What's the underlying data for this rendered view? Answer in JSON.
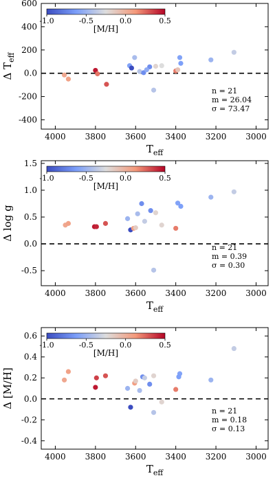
{
  "colorbar": {
    "vmin": -1.0,
    "vmax": 0.5,
    "ticks": [
      "-1.0",
      "-0.5",
      "0.0",
      "0.5"
    ],
    "label": "[M/H]",
    "colormap": "coolwarm"
  },
  "chart_data": [
    {
      "type": "scatter",
      "ylabel": "Δ T_eff",
      "xlabel": "T_eff",
      "xlim": [
        4070,
        2940
      ],
      "ylim": [
        -480,
        600
      ],
      "xticks": [
        4000,
        3800,
        3600,
        3400,
        3200,
        3000
      ],
      "yticks": [
        -400,
        -200,
        0,
        200,
        400,
        600
      ],
      "reference_line": 0,
      "stats": [
        "n = 21",
        "m = 26.04",
        "σ = 73.47"
      ],
      "points": [
        {
          "x": 3955,
          "y": -15,
          "mh": 0.05
        },
        {
          "x": 3935,
          "y": -50,
          "mh": 0.08
        },
        {
          "x": 3800,
          "y": 25,
          "mh": 0.45
        },
        {
          "x": 3790,
          "y": -5,
          "mh": 0.22
        },
        {
          "x": 3745,
          "y": -95,
          "mh": 0.3
        },
        {
          "x": 3630,
          "y": 65,
          "mh": -0.6
        },
        {
          "x": 3620,
          "y": 45,
          "mh": -1.0
        },
        {
          "x": 3605,
          "y": 135,
          "mh": -0.45
        },
        {
          "x": 3580,
          "y": 15,
          "mh": -0.4
        },
        {
          "x": 3560,
          "y": 5,
          "mh": -0.7
        },
        {
          "x": 3530,
          "y": 55,
          "mh": -0.7
        },
        {
          "x": 3510,
          "y": -145,
          "mh": -0.4
        },
        {
          "x": 3470,
          "y": 65,
          "mh": -0.25
        },
        {
          "x": 3400,
          "y": 20,
          "mh": 0.2
        },
        {
          "x": 3390,
          "y": 30,
          "mh": -0.1
        },
        {
          "x": 3380,
          "y": 135,
          "mh": -0.6
        },
        {
          "x": 3375,
          "y": 85,
          "mh": -0.62
        },
        {
          "x": 3225,
          "y": 115,
          "mh": -0.5
        },
        {
          "x": 3110,
          "y": 180,
          "mh": -0.35
        },
        {
          "x": 3500,
          "y": 60,
          "mh": -0.2
        },
        {
          "x": 3545,
          "y": 30,
          "mh": -0.55
        }
      ]
    },
    {
      "type": "scatter",
      "ylabel": "Δ log g",
      "xlabel": "T_eff",
      "xlim": [
        4070,
        2940
      ],
      "ylim": [
        -0.78,
        1.55
      ],
      "xticks": [
        4000,
        3800,
        3600,
        3400,
        3200,
        3000
      ],
      "yticks": [
        -0.5,
        0.0,
        0.5,
        1.0,
        1.5
      ],
      "reference_line": 0,
      "stats": [
        "n = 21",
        "m = 0.39",
        "σ = 0.30"
      ],
      "points": [
        {
          "x": 3950,
          "y": 0.35,
          "mh": 0.05
        },
        {
          "x": 3935,
          "y": 0.38,
          "mh": 0.08
        },
        {
          "x": 3805,
          "y": 0.32,
          "mh": 0.45
        },
        {
          "x": 3795,
          "y": 0.32,
          "mh": 0.42
        },
        {
          "x": 3750,
          "y": 0.38,
          "mh": 0.3
        },
        {
          "x": 3640,
          "y": 0.47,
          "mh": -0.5
        },
        {
          "x": 3625,
          "y": 0.26,
          "mh": -1.0
        },
        {
          "x": 3610,
          "y": 0.29,
          "mh": 0.1
        },
        {
          "x": 3590,
          "y": 0.56,
          "mh": -0.45
        },
        {
          "x": 3570,
          "y": 0.75,
          "mh": -0.7
        },
        {
          "x": 3555,
          "y": 0.42,
          "mh": -0.35
        },
        {
          "x": 3525,
          "y": 0.62,
          "mh": -0.7
        },
        {
          "x": 3510,
          "y": -0.49,
          "mh": -0.4
        },
        {
          "x": 3470,
          "y": 0.35,
          "mh": -0.2
        },
        {
          "x": 3400,
          "y": 0.29,
          "mh": 0.2
        },
        {
          "x": 3390,
          "y": 0.76,
          "mh": -0.6
        },
        {
          "x": 3375,
          "y": 0.7,
          "mh": -0.62
        },
        {
          "x": 3225,
          "y": 0.87,
          "mh": -0.5
        },
        {
          "x": 3110,
          "y": 0.97,
          "mh": -0.35
        },
        {
          "x": 3500,
          "y": 0.58,
          "mh": -0.2
        },
        {
          "x": 3600,
          "y": 0.3,
          "mh": -0.15
        }
      ]
    },
    {
      "type": "scatter",
      "ylabel": "Δ [M/H]",
      "xlabel": "T_eff",
      "xlim": [
        4070,
        2940
      ],
      "ylim": [
        -0.48,
        0.68
      ],
      "xticks": [
        4000,
        3800,
        3600,
        3400,
        3200,
        3000
      ],
      "yticks": [
        -0.4,
        -0.2,
        0.0,
        0.2,
        0.4,
        0.6
      ],
      "reference_line": 0,
      "stats": [
        "n = 21",
        "m = 0.18",
        "σ = 0.13"
      ],
      "points": [
        {
          "x": 3955,
          "y": 0.18,
          "mh": 0.05
        },
        {
          "x": 3935,
          "y": 0.26,
          "mh": 0.08
        },
        {
          "x": 3800,
          "y": 0.11,
          "mh": 0.45
        },
        {
          "x": 3795,
          "y": 0.2,
          "mh": 0.35
        },
        {
          "x": 3750,
          "y": 0.22,
          "mh": 0.3
        },
        {
          "x": 3640,
          "y": 0.1,
          "mh": -0.5
        },
        {
          "x": 3625,
          "y": -0.08,
          "mh": -1.0
        },
        {
          "x": 3605,
          "y": 0.15,
          "mh": 0.1
        },
        {
          "x": 3580,
          "y": 0.08,
          "mh": -0.45
        },
        {
          "x": 3565,
          "y": 0.21,
          "mh": -0.7
        },
        {
          "x": 3555,
          "y": 0.2,
          "mh": -0.35
        },
        {
          "x": 3530,
          "y": 0.14,
          "mh": -0.7
        },
        {
          "x": 3510,
          "y": 0.22,
          "mh": -0.2
        },
        {
          "x": 3510,
          "y": -0.13,
          "mh": -0.4
        },
        {
          "x": 3470,
          "y": -0.03,
          "mh": -0.2
        },
        {
          "x": 3400,
          "y": 0.09,
          "mh": 0.2
        },
        {
          "x": 3380,
          "y": 0.24,
          "mh": -0.6
        },
        {
          "x": 3385,
          "y": 0.21,
          "mh": -0.62
        },
        {
          "x": 3225,
          "y": 0.18,
          "mh": -0.5
        },
        {
          "x": 3110,
          "y": 0.48,
          "mh": -0.35
        },
        {
          "x": 3600,
          "y": 0.17,
          "mh": -0.15
        }
      ]
    }
  ]
}
